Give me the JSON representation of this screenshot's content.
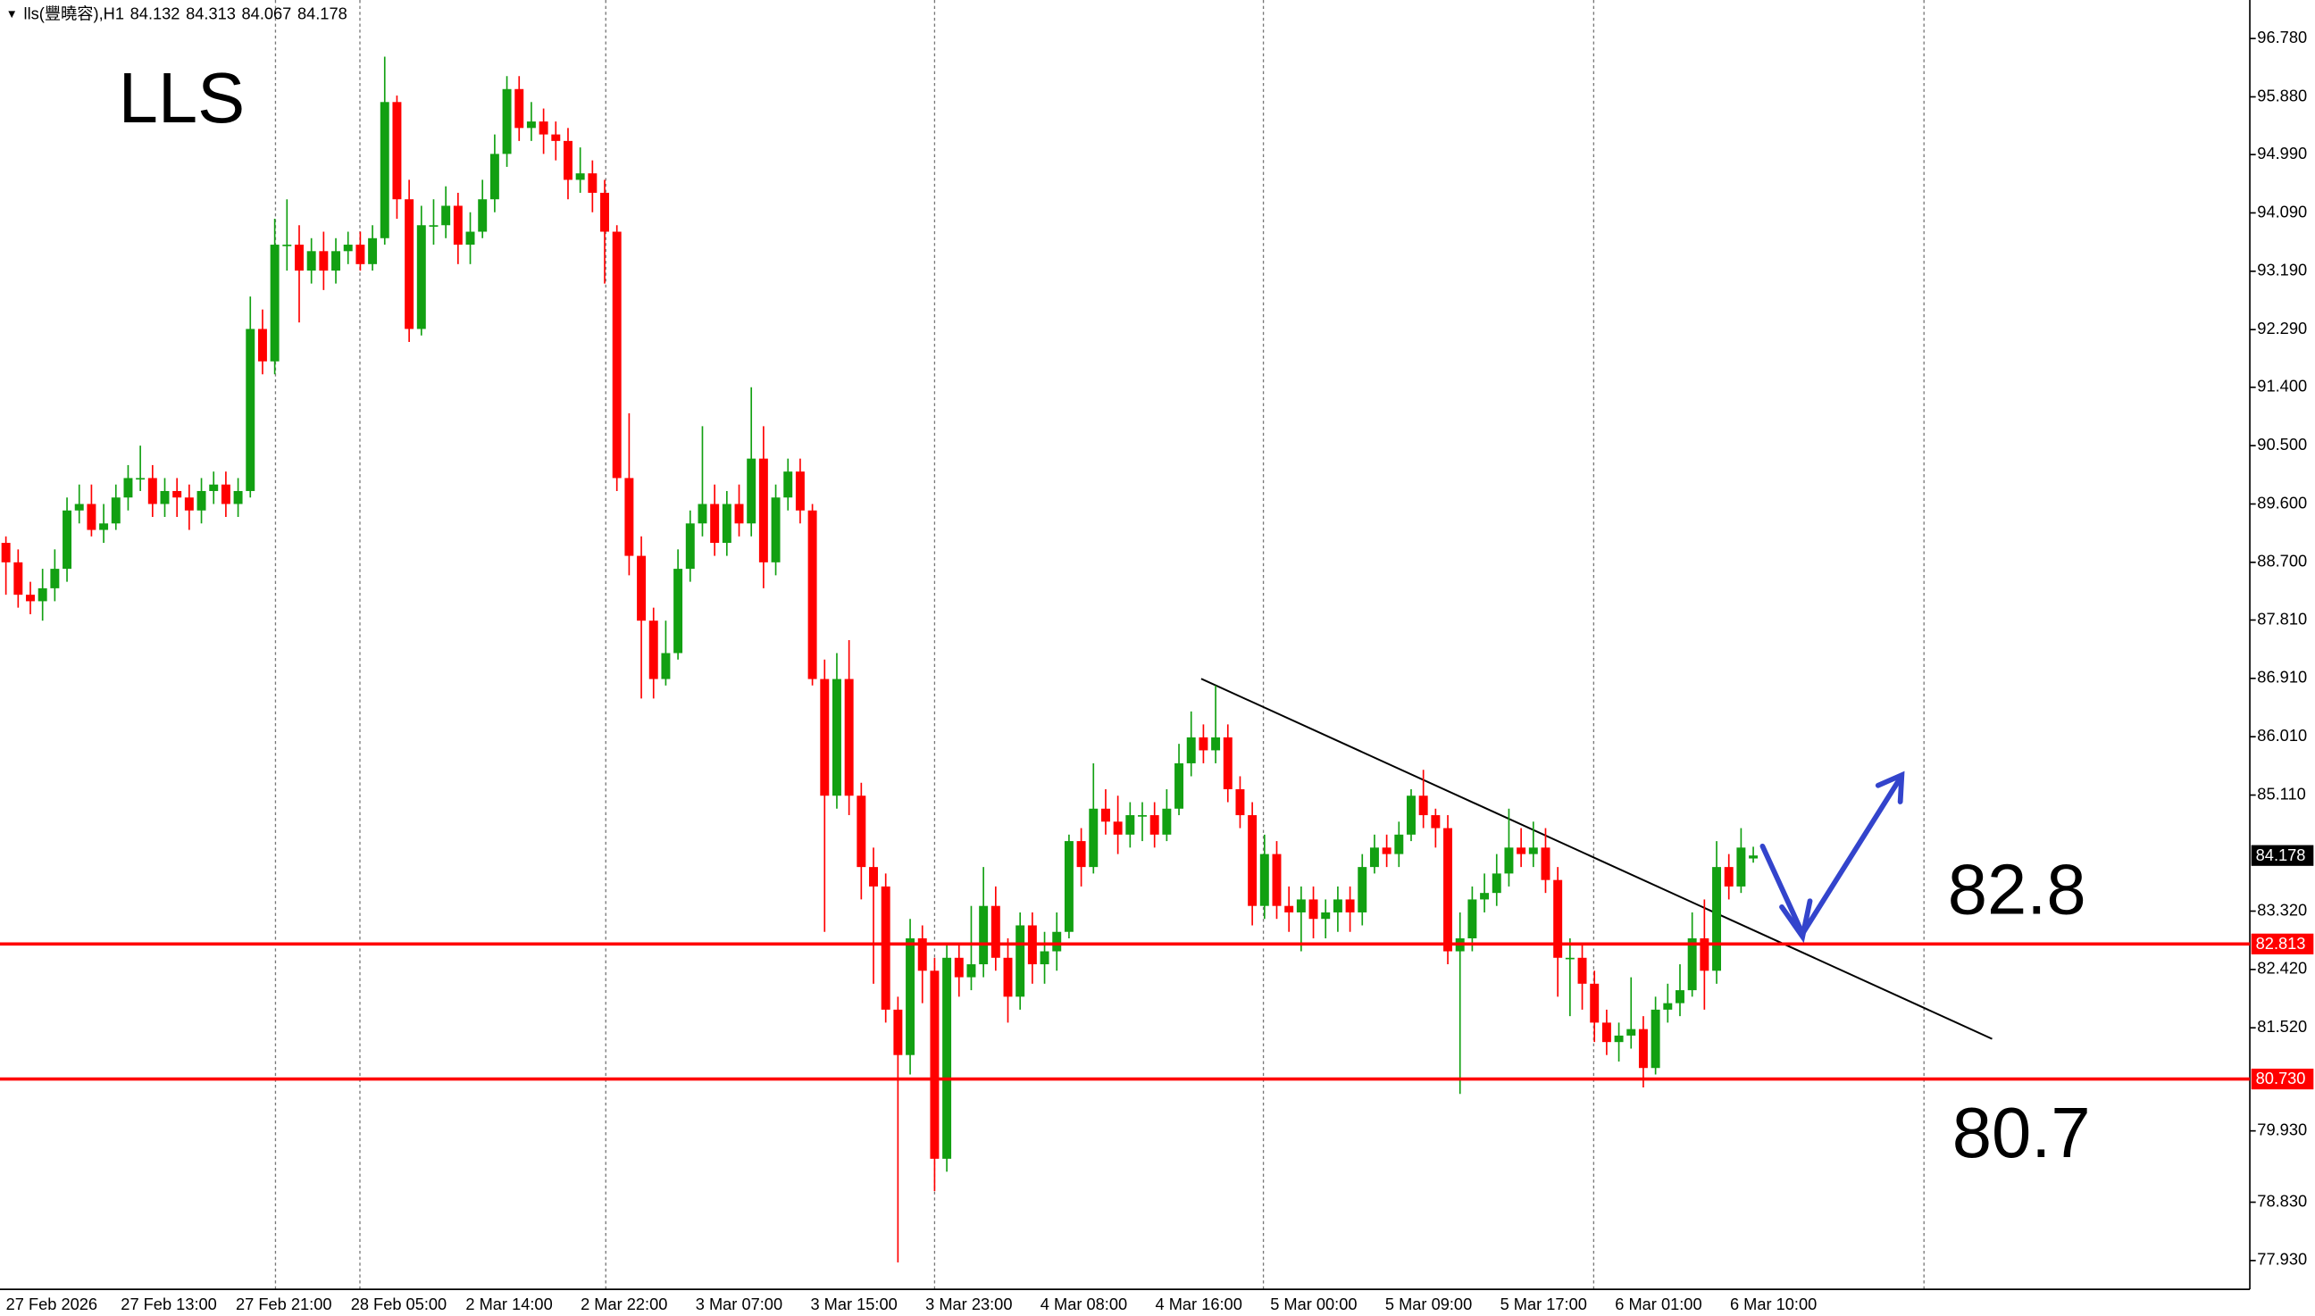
{
  "chart_data": {
    "type": "candlestick",
    "title": "lls(豐曉容),H1",
    "annotations": [
      "LLS",
      "82.8",
      "80.7"
    ],
    "up_color": "#12a012",
    "down_color": "#ff0000",
    "level_color": "#ff0000",
    "ylim": [
      77.486,
      97.374
    ],
    "yticks": [
      {
        "value": 96.78,
        "label": "96.780"
      },
      {
        "value": 95.88,
        "label": "95.880"
      },
      {
        "value": 94.99,
        "label": "94.990"
      },
      {
        "value": 94.09,
        "label": "94.090"
      },
      {
        "value": 93.19,
        "label": "93.190"
      },
      {
        "value": 92.29,
        "label": "92.290"
      },
      {
        "value": 91.4,
        "label": "91.400"
      },
      {
        "value": 90.5,
        "label": "90.500"
      },
      {
        "value": 89.6,
        "label": "89.600"
      },
      {
        "value": 88.7,
        "label": "88.700"
      },
      {
        "value": 87.81,
        "label": "87.810"
      },
      {
        "value": 86.91,
        "label": "86.910"
      },
      {
        "value": 86.01,
        "label": "86.010"
      },
      {
        "value": 85.11,
        "label": "85.110"
      },
      {
        "value": 83.32,
        "label": "83.320"
      },
      {
        "value": 82.42,
        "label": "82.420"
      },
      {
        "value": 81.52,
        "label": "81.520"
      },
      {
        "value": 79.93,
        "label": "79.930"
      },
      {
        "value": 78.83,
        "label": "78.830"
      },
      {
        "value": 77.93,
        "label": "77.930"
      }
    ],
    "levels": [
      {
        "value": 82.813,
        "label": "82.813"
      },
      {
        "value": 80.73,
        "label": "80.730"
      }
    ],
    "x_tick_labels": [
      "27 Feb 2026",
      "27 Feb 13:00",
      "27 Feb 21:00",
      "28 Feb 05:00",
      "2 Mar 14:00",
      "2 Mar 22:00",
      "3 Mar 07:00",
      "3 Mar 15:00",
      "3 Mar 23:00",
      "4 Mar 08:00",
      "4 Mar 16:00",
      "5 Mar 00:00",
      "5 Mar 09:00",
      "5 Mar 17:00",
      "6 Mar 01:00",
      "6 Mar 10:00"
    ],
    "ohlc": [
      [
        89.0,
        89.1,
        88.2,
        88.7
      ],
      [
        88.7,
        88.9,
        88.0,
        88.2
      ],
      [
        88.2,
        88.4,
        87.9,
        88.1
      ],
      [
        88.1,
        88.6,
        87.8,
        88.3
      ],
      [
        88.3,
        88.9,
        88.1,
        88.6
      ],
      [
        88.6,
        89.7,
        88.4,
        89.5
      ],
      [
        89.5,
        89.9,
        89.3,
        89.6
      ],
      [
        89.6,
        89.9,
        89.1,
        89.2
      ],
      [
        89.2,
        89.6,
        89.0,
        89.3
      ],
      [
        89.3,
        89.9,
        89.2,
        89.7
      ],
      [
        89.7,
        90.2,
        89.5,
        90.0
      ],
      [
        90.0,
        90.5,
        89.8,
        90.0
      ],
      [
        90.0,
        90.2,
        89.4,
        89.6
      ],
      [
        89.6,
        90.0,
        89.4,
        89.8
      ],
      [
        89.8,
        90.0,
        89.4,
        89.7
      ],
      [
        89.7,
        89.9,
        89.2,
        89.5
      ],
      [
        89.5,
        90.0,
        89.3,
        89.8
      ],
      [
        89.8,
        90.1,
        89.6,
        89.9
      ],
      [
        89.9,
        90.1,
        89.4,
        89.6
      ],
      [
        89.6,
        90.0,
        89.4,
        89.8
      ],
      [
        89.8,
        92.8,
        89.7,
        92.3
      ],
      [
        92.3,
        92.6,
        91.6,
        91.8
      ],
      [
        91.8,
        94.0,
        91.6,
        93.6
      ],
      [
        93.6,
        94.3,
        93.2,
        93.6
      ],
      [
        93.6,
        93.9,
        92.4,
        93.2
      ],
      [
        93.2,
        93.7,
        93.0,
        93.5
      ],
      [
        93.5,
        93.8,
        92.9,
        93.2
      ],
      [
        93.2,
        93.7,
        93.0,
        93.5
      ],
      [
        93.5,
        93.8,
        93.3,
        93.6
      ],
      [
        93.6,
        93.8,
        93.2,
        93.3
      ],
      [
        93.3,
        93.9,
        93.2,
        93.7
      ],
      [
        93.7,
        96.5,
        93.6,
        95.8
      ],
      [
        95.8,
        95.9,
        94.0,
        94.3
      ],
      [
        94.3,
        94.6,
        92.1,
        92.3
      ],
      [
        92.3,
        94.2,
        92.2,
        93.9
      ],
      [
        93.9,
        94.3,
        93.6,
        93.9
      ],
      [
        93.9,
        94.5,
        93.7,
        94.2
      ],
      [
        94.2,
        94.4,
        93.3,
        93.6
      ],
      [
        93.6,
        94.1,
        93.3,
        93.8
      ],
      [
        93.8,
        94.6,
        93.7,
        94.3
      ],
      [
        94.3,
        95.3,
        94.1,
        95.0
      ],
      [
        95.0,
        96.2,
        94.8,
        96.0
      ],
      [
        96.0,
        96.2,
        95.2,
        95.4
      ],
      [
        95.4,
        95.8,
        95.2,
        95.5
      ],
      [
        95.5,
        95.7,
        95.0,
        95.3
      ],
      [
        95.3,
        95.5,
        94.9,
        95.2
      ],
      [
        95.2,
        95.4,
        94.3,
        94.6
      ],
      [
        94.6,
        95.1,
        94.4,
        94.7
      ],
      [
        94.7,
        94.9,
        94.1,
        94.4
      ],
      [
        94.4,
        94.6,
        93.0,
        93.8
      ],
      [
        93.8,
        93.9,
        89.8,
        90.0
      ],
      [
        90.0,
        91.0,
        88.5,
        88.8
      ],
      [
        88.8,
        89.1,
        86.6,
        87.8
      ],
      [
        87.8,
        88.0,
        86.6,
        86.9
      ],
      [
        86.9,
        87.8,
        86.8,
        87.3
      ],
      [
        87.3,
        88.9,
        87.2,
        88.6
      ],
      [
        88.6,
        89.5,
        88.4,
        89.3
      ],
      [
        89.3,
        90.8,
        89.1,
        89.6
      ],
      [
        89.6,
        89.9,
        88.8,
        89.0
      ],
      [
        89.0,
        89.8,
        88.8,
        89.6
      ],
      [
        89.6,
        89.9,
        89.1,
        89.3
      ],
      [
        89.3,
        91.4,
        89.1,
        90.3
      ],
      [
        90.3,
        90.8,
        88.3,
        88.7
      ],
      [
        88.7,
        89.9,
        88.5,
        89.7
      ],
      [
        89.7,
        90.3,
        89.5,
        90.1
      ],
      [
        90.1,
        90.3,
        89.3,
        89.5
      ],
      [
        89.5,
        89.6,
        86.8,
        86.9
      ],
      [
        86.9,
        87.2,
        83.0,
        85.1
      ],
      [
        85.1,
        87.3,
        84.9,
        86.9
      ],
      [
        86.9,
        87.5,
        84.8,
        85.1
      ],
      [
        85.1,
        85.3,
        83.5,
        84.0
      ],
      [
        84.0,
        84.3,
        82.2,
        83.7
      ],
      [
        83.7,
        83.9,
        81.6,
        81.8
      ],
      [
        81.8,
        82.0,
        77.9,
        81.1
      ],
      [
        81.1,
        83.2,
        80.8,
        82.9
      ],
      [
        82.9,
        83.1,
        81.9,
        82.4
      ],
      [
        82.4,
        82.6,
        79.0,
        79.5
      ],
      [
        79.5,
        82.8,
        79.3,
        82.6
      ],
      [
        82.6,
        82.8,
        82.0,
        82.3
      ],
      [
        82.3,
        83.4,
        82.1,
        82.5
      ],
      [
        82.5,
        84.0,
        82.3,
        83.4
      ],
      [
        83.4,
        83.7,
        82.4,
        82.6
      ],
      [
        82.6,
        82.9,
        81.6,
        82.0
      ],
      [
        82.0,
        83.3,
        81.8,
        83.1
      ],
      [
        83.1,
        83.3,
        82.2,
        82.5
      ],
      [
        82.5,
        83.0,
        82.2,
        82.7
      ],
      [
        82.7,
        83.3,
        82.4,
        83.0
      ],
      [
        83.0,
        84.5,
        82.9,
        84.4
      ],
      [
        84.4,
        84.6,
        83.7,
        84.0
      ],
      [
        84.0,
        85.6,
        83.9,
        84.9
      ],
      [
        84.9,
        85.2,
        84.5,
        84.7
      ],
      [
        84.7,
        85.1,
        84.2,
        84.5
      ],
      [
        84.5,
        85.0,
        84.3,
        84.8
      ],
      [
        84.8,
        85.0,
        84.4,
        84.8
      ],
      [
        84.8,
        85.0,
        84.3,
        84.5
      ],
      [
        84.5,
        85.2,
        84.4,
        84.9
      ],
      [
        84.9,
        85.9,
        84.8,
        85.6
      ],
      [
        85.6,
        86.4,
        85.4,
        86.0
      ],
      [
        86.0,
        86.2,
        85.6,
        85.8
      ],
      [
        85.8,
        86.8,
        85.6,
        86.0
      ],
      [
        86.0,
        86.2,
        85.0,
        85.2
      ],
      [
        85.2,
        85.4,
        84.6,
        84.8
      ],
      [
        84.8,
        85.0,
        83.1,
        83.4
      ],
      [
        83.4,
        84.5,
        83.2,
        84.2
      ],
      [
        84.2,
        84.4,
        83.2,
        83.4
      ],
      [
        83.4,
        83.7,
        83.0,
        83.3
      ],
      [
        83.3,
        83.7,
        82.7,
        83.5
      ],
      [
        83.5,
        83.7,
        82.9,
        83.2
      ],
      [
        83.2,
        83.5,
        82.9,
        83.3
      ],
      [
        83.3,
        83.7,
        83.0,
        83.5
      ],
      [
        83.5,
        83.7,
        83.0,
        83.3
      ],
      [
        83.3,
        84.2,
        83.1,
        84.0
      ],
      [
        84.0,
        84.5,
        83.9,
        84.3
      ],
      [
        84.3,
        84.5,
        84.0,
        84.2
      ],
      [
        84.2,
        84.7,
        84.0,
        84.5
      ],
      [
        84.5,
        85.2,
        84.4,
        85.1
      ],
      [
        85.1,
        85.5,
        84.6,
        84.8
      ],
      [
        84.8,
        84.9,
        84.3,
        84.6
      ],
      [
        84.6,
        84.8,
        82.5,
        82.7
      ],
      [
        82.7,
        83.3,
        80.5,
        82.9
      ],
      [
        82.9,
        83.7,
        82.7,
        83.5
      ],
      [
        83.5,
        83.9,
        83.3,
        83.6
      ],
      [
        83.6,
        84.2,
        83.4,
        83.9
      ],
      [
        83.9,
        84.9,
        83.7,
        84.3
      ],
      [
        84.3,
        84.6,
        84.0,
        84.2
      ],
      [
        84.2,
        84.7,
        84.0,
        84.3
      ],
      [
        84.3,
        84.6,
        83.6,
        83.8
      ],
      [
        83.8,
        84.0,
        82.0,
        82.6
      ],
      [
        82.6,
        82.9,
        81.7,
        82.6
      ],
      [
        82.6,
        82.8,
        81.8,
        82.2
      ],
      [
        82.2,
        82.4,
        81.3,
        81.6
      ],
      [
        81.6,
        81.8,
        81.1,
        81.3
      ],
      [
        81.3,
        81.6,
        81.0,
        81.4
      ],
      [
        81.4,
        82.3,
        81.2,
        81.5
      ],
      [
        81.5,
        81.7,
        80.6,
        80.9
      ],
      [
        80.9,
        82.0,
        80.8,
        81.8
      ],
      [
        81.8,
        82.2,
        81.6,
        81.9
      ],
      [
        81.9,
        82.5,
        81.7,
        82.1
      ],
      [
        82.1,
        83.3,
        82.0,
        82.9
      ],
      [
        82.9,
        83.5,
        81.8,
        82.4
      ],
      [
        82.4,
        84.4,
        82.2,
        84.0
      ],
      [
        84.0,
        84.2,
        83.5,
        83.7
      ],
      [
        83.7,
        84.6,
        83.6,
        84.3
      ],
      [
        84.132,
        84.313,
        84.067,
        84.178
      ]
    ]
  }
}
